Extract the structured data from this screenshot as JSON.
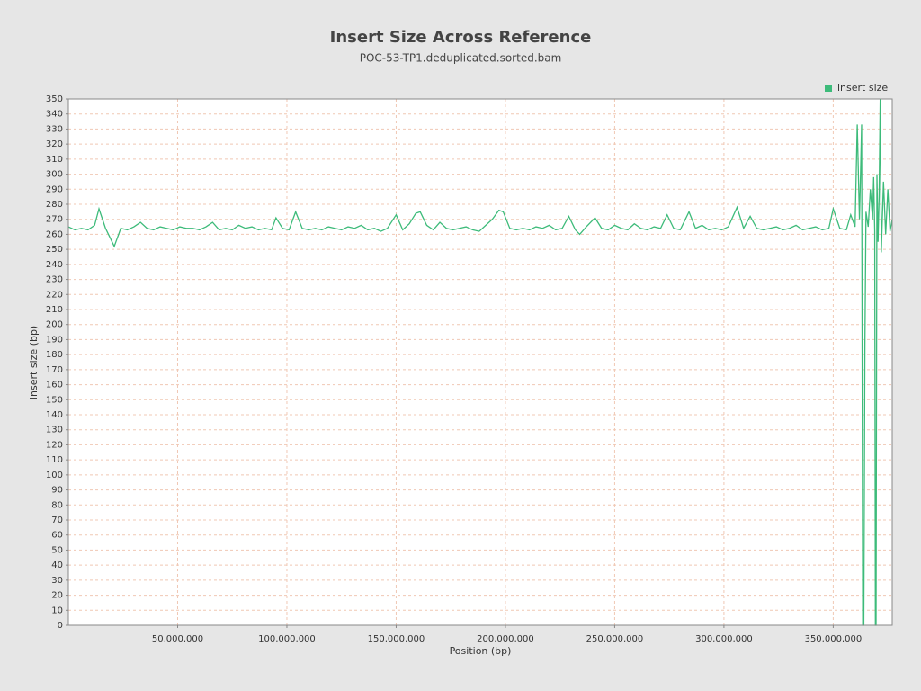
{
  "chart_data": {
    "type": "line",
    "title": "Insert Size Across Reference",
    "subtitle": "POC-53-TP1.deduplicated.sorted.bam",
    "x_label": "Position (bp)",
    "y_label": "Insert size (bp)",
    "x": [
      0,
      3000000,
      6000000,
      9000000,
      12000000,
      14000000,
      17000000,
      21000000,
      24000000,
      27000000,
      30000000,
      33000000,
      36000000,
      39000000,
      42000000,
      45000000,
      48000000,
      51000000,
      54000000,
      57000000,
      60000000,
      63000000,
      66000000,
      69000000,
      72000000,
      75000000,
      78000000,
      81000000,
      84000000,
      87000000,
      90000000,
      93000000,
      95000000,
      98000000,
      101000000,
      104000000,
      107000000,
      110000000,
      113000000,
      116000000,
      119000000,
      122000000,
      125000000,
      128000000,
      131000000,
      134000000,
      137000000,
      140000000,
      143000000,
      146000000,
      150000000,
      153000000,
      156000000,
      159000000,
      161000000,
      164000000,
      167000000,
      170000000,
      173000000,
      176000000,
      179000000,
      182000000,
      185000000,
      188000000,
      191000000,
      194000000,
      197000000,
      199000000,
      202000000,
      205000000,
      208000000,
      211000000,
      214000000,
      217000000,
      220000000,
      223000000,
      226000000,
      229000000,
      232000000,
      234000000,
      237000000,
      241000000,
      244000000,
      247000000,
      250000000,
      253000000,
      256000000,
      259000000,
      262000000,
      265000000,
      268000000,
      271000000,
      274000000,
      277000000,
      280000000,
      284000000,
      287000000,
      290000000,
      293000000,
      296000000,
      299000000,
      302000000,
      306000000,
      309000000,
      312000000,
      315000000,
      318000000,
      321000000,
      324000000,
      327000000,
      330000000,
      333000000,
      336000000,
      339000000,
      342000000,
      345000000,
      348000000,
      350000000,
      353000000,
      356000000,
      358000000,
      360000000,
      361000000,
      362000000,
      362500000,
      363000000,
      363500000,
      364000000,
      364500000,
      365000000,
      366000000,
      367000000,
      368000000,
      368500000,
      369000000,
      369300000,
      369600000,
      370000000,
      370500000,
      371000000,
      371500000,
      372000000,
      373000000,
      374000000,
      375000000,
      376000000,
      377000000
    ],
    "series": [
      {
        "name": "insert size",
        "color": "#3dbb7a",
        "values": [
          265,
          263,
          264,
          263,
          266,
          277,
          264,
          252,
          264,
          263,
          265,
          268,
          264,
          263,
          265,
          264,
          263,
          265,
          264,
          264,
          263,
          265,
          268,
          263,
          264,
          263,
          266,
          264,
          265,
          263,
          264,
          263,
          271,
          264,
          263,
          275,
          264,
          263,
          264,
          263,
          265,
          264,
          263,
          265,
          264,
          266,
          263,
          264,
          262,
          264,
          273,
          263,
          267,
          274,
          275,
          266,
          263,
          268,
          264,
          263,
          264,
          265,
          263,
          262,
          266,
          270,
          276,
          275,
          264,
          263,
          264,
          263,
          265,
          264,
          266,
          263,
          264,
          272,
          263,
          260,
          265,
          271,
          264,
          263,
          266,
          264,
          263,
          267,
          264,
          263,
          265,
          264,
          273,
          264,
          263,
          275,
          264,
          266,
          263,
          264,
          263,
          265,
          278,
          264,
          272,
          264,
          263,
          264,
          265,
          263,
          264,
          266,
          263,
          264,
          265,
          263,
          264,
          277,
          264,
          263,
          273,
          265,
          333,
          270,
          300,
          333,
          0,
          0,
          186,
          275,
          265,
          290,
          270,
          298,
          262,
          0,
          0,
          300,
          255,
          285,
          350,
          248,
          295,
          260,
          290,
          262,
          270
        ]
      }
    ],
    "xlim": [
      0,
      377000000
    ],
    "ylim": [
      0,
      350
    ],
    "xticks": [
      {
        "value": 50000000,
        "label": "50,000,000"
      },
      {
        "value": 100000000,
        "label": "100,000,000"
      },
      {
        "value": 150000000,
        "label": "150,000,000"
      },
      {
        "value": 200000000,
        "label": "200,000,000"
      },
      {
        "value": 250000000,
        "label": "250,000,000"
      },
      {
        "value": 300000000,
        "label": "300,000,000"
      },
      {
        "value": 350000000,
        "label": "350,000,000"
      }
    ],
    "yticks": [
      0,
      10,
      20,
      30,
      40,
      50,
      60,
      70,
      80,
      90,
      100,
      110,
      120,
      130,
      140,
      150,
      160,
      170,
      180,
      190,
      200,
      210,
      220,
      230,
      240,
      250,
      260,
      270,
      280,
      290,
      300,
      310,
      320,
      330,
      340,
      350
    ],
    "grid": true,
    "legend": "top-right"
  }
}
